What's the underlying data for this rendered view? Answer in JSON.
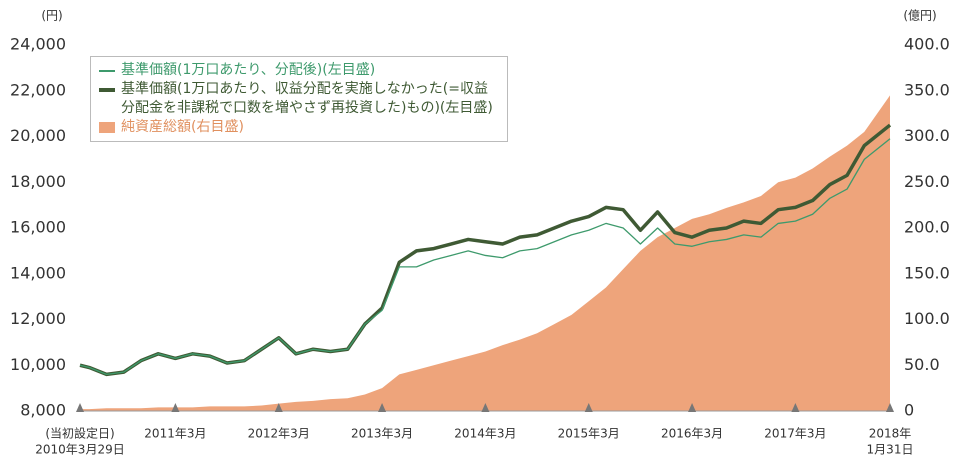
{
  "chart_data": {
    "type": "line",
    "y_label": "(円)",
    "y2_label": "(億円)",
    "x": [
      "2010-03-29",
      "2010-05",
      "2010-07",
      "2010-09",
      "2010-11",
      "2011-01",
      "2011-03",
      "2011-05",
      "2011-07",
      "2011-09",
      "2011-11",
      "2012-01",
      "2012-03",
      "2012-05",
      "2012-07",
      "2012-09",
      "2012-11",
      "2013-01",
      "2013-03",
      "2013-05",
      "2013-07",
      "2013-09",
      "2013-11",
      "2014-01",
      "2014-03",
      "2014-05",
      "2014-07",
      "2014-09",
      "2014-11",
      "2015-01",
      "2015-03",
      "2015-05",
      "2015-07",
      "2015-09",
      "2015-11",
      "2016-01",
      "2016-03",
      "2016-05",
      "2016-07",
      "2016-09",
      "2016-11",
      "2017-01",
      "2017-03",
      "2017-05",
      "2017-07",
      "2017-09",
      "2017-11",
      "2018-01-31"
    ],
    "xlim": [
      "2010-03-29",
      "2018-01-31"
    ],
    "xticks": [
      {
        "value": "2010-03-29",
        "label": [
          "(当初設定日)",
          "2010年3月29日"
        ]
      },
      {
        "value": "2011-03",
        "label": [
          "2011年3月"
        ]
      },
      {
        "value": "2012-03",
        "label": [
          "2012年3月"
        ]
      },
      {
        "value": "2013-03",
        "label": [
          "2013年3月"
        ]
      },
      {
        "value": "2014-03",
        "label": [
          "2014年3月"
        ]
      },
      {
        "value": "2015-03",
        "label": [
          "2015年3月"
        ]
      },
      {
        "value": "2016-03",
        "label": [
          "2016年3月"
        ]
      },
      {
        "value": "2017-03",
        "label": [
          "2017年3月"
        ]
      },
      {
        "value": "2018-01-31",
        "label": [
          "2018年",
          "1月31日"
        ]
      }
    ],
    "ylim": [
      8000,
      24000
    ],
    "yticks": [
      {
        "value": 8000,
        "label": "8,000"
      },
      {
        "value": 10000,
        "label": "10,000"
      },
      {
        "value": 12000,
        "label": "12,000"
      },
      {
        "value": 14000,
        "label": "14,000"
      },
      {
        "value": 16000,
        "label": "16,000"
      },
      {
        "value": 18000,
        "label": "18,000"
      },
      {
        "value": 20000,
        "label": "20,000"
      },
      {
        "value": 22000,
        "label": "22,000"
      },
      {
        "value": 24000,
        "label": "24,000"
      }
    ],
    "y2lim": [
      0,
      400
    ],
    "y2ticks": [
      0,
      {
        "value": 50,
        "label": "50.0"
      },
      {
        "value": 100,
        "label": "100.0"
      },
      {
        "value": 150,
        "label": "150.0"
      },
      {
        "value": 200,
        "label": "200.0"
      },
      {
        "value": 250,
        "label": "250.0"
      },
      {
        "value": 300,
        "label": "300.0"
      },
      {
        "value": 350,
        "label": "350.0"
      },
      {
        "value": 400,
        "label": "400.0"
      }
    ],
    "series": [
      {
        "name": "純資産総額(右目盛)",
        "type": "area",
        "axis": "y2",
        "color": "#eea47b",
        "values": [
          2,
          2,
          3,
          3,
          3,
          4,
          4,
          4,
          5,
          5,
          5,
          6,
          8,
          10,
          11,
          13,
          14,
          18,
          25,
          40,
          45,
          50,
          55,
          60,
          65,
          72,
          78,
          85,
          95,
          105,
          120,
          135,
          155,
          175,
          190,
          200,
          210,
          215,
          222,
          228,
          235,
          250,
          255,
          265,
          278,
          290,
          305,
          345
        ]
      },
      {
        "name": "基準価額(1万口あたり、分配後)(左目盛)",
        "type": "line",
        "color": "#3e9a6c",
        "line_width": 1.3,
        "values": [
          10000,
          9900,
          9600,
          9700,
          10200,
          10500,
          10300,
          10500,
          10400,
          10100,
          10200,
          10700,
          11200,
          10500,
          10700,
          10600,
          10700,
          11800,
          12400,
          14300,
          14300,
          14600,
          14800,
          15000,
          14800,
          14700,
          15000,
          15100,
          15400,
          15700,
          15900,
          16200,
          16000,
          15300,
          16000,
          15300,
          15200,
          15400,
          15500,
          15700,
          15600,
          16200,
          16300,
          16600,
          17300,
          17700,
          19000,
          19900
        ]
      },
      {
        "name": "基準価額(1万口あたり、収益分配を実施しなかった(=収益分配金を非課税で口数を増やさず再投資した)もの)(左目盛)",
        "type": "line",
        "color": "#3f5a34",
        "line_width": 3.5,
        "values": [
          10000,
          9900,
          9600,
          9700,
          10200,
          10500,
          10300,
          10500,
          10400,
          10100,
          10200,
          10700,
          11200,
          10500,
          10700,
          10600,
          10700,
          11800,
          12500,
          14500,
          15000,
          15100,
          15300,
          15500,
          15400,
          15300,
          15600,
          15700,
          16000,
          16300,
          16500,
          16900,
          16800,
          15900,
          16700,
          15800,
          15600,
          15900,
          16000,
          16300,
          16200,
          16800,
          16900,
          17200,
          17900,
          18300,
          19600,
          20500
        ]
      }
    ],
    "legend_order": [
      1,
      2,
      0
    ]
  }
}
